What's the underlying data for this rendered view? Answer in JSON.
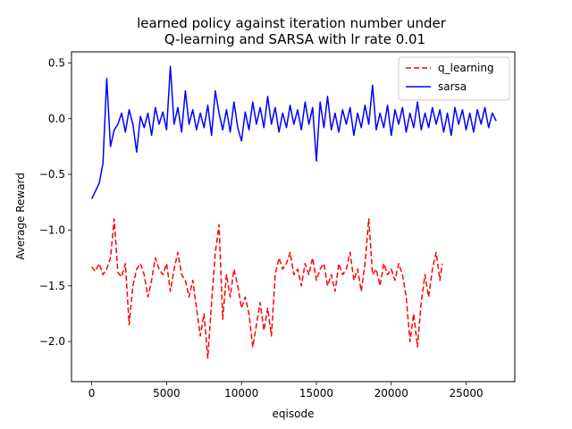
{
  "chart_data": {
    "type": "line",
    "title_line1": "learned policy against iteration number under",
    "title_line2": "Q-learning and SARSA with lr rate 0.01",
    "xlabel": "eqisode",
    "ylabel": "Average Reward",
    "xlim": [
      -1350,
      28250
    ],
    "ylim": [
      -2.36,
      0.6
    ],
    "xticks": [
      0,
      5000,
      10000,
      15000,
      20000,
      25000
    ],
    "xtick_labels": [
      "0",
      "5000",
      "10000",
      "15000",
      "20000",
      "25000"
    ],
    "yticks": [
      0.5,
      0.0,
      -0.5,
      -1.0,
      -1.5,
      -2.0
    ],
    "ytick_labels": [
      "0.5",
      "0.0",
      "−0.5",
      "−1.0",
      "−1.5",
      "−2.0"
    ],
    "grid": false,
    "legend_position": "upper right",
    "series": [
      {
        "name": "q_learning",
        "color": "#ff0000",
        "linestyle": "dashed",
        "x": [
          0,
          250,
          500,
          750,
          1000,
          1250,
          1500,
          1750,
          2000,
          2250,
          2500,
          2750,
          3000,
          3250,
          3500,
          3750,
          4000,
          4250,
          4500,
          4750,
          5000,
          5250,
          5500,
          5750,
          6000,
          6250,
          6500,
          6750,
          7000,
          7250,
          7500,
          7750,
          8000,
          8250,
          8500,
          8750,
          9000,
          9250,
          9500,
          9750,
          10000,
          10250,
          10500,
          10750,
          11000,
          11250,
          11500,
          11750,
          12000,
          12250,
          12500,
          12750,
          13000,
          13250,
          13500,
          13750,
          14000,
          14250,
          14500,
          14750,
          15000,
          15250,
          15500,
          15750,
          16000,
          16250,
          16500,
          16750,
          17000,
          17250,
          17500,
          17750,
          18000,
          18250,
          18500,
          18750,
          19000,
          19250,
          19500,
          19750,
          20000,
          20250,
          20500,
          20750,
          21000,
          21250,
          21500,
          21750,
          22000,
          22250,
          22500,
          22750,
          23000,
          23250,
          23400
        ],
        "y": [
          -1.33,
          -1.37,
          -1.3,
          -1.4,
          -1.35,
          -1.25,
          -0.9,
          -1.38,
          -1.42,
          -1.3,
          -1.85,
          -1.5,
          -1.35,
          -1.3,
          -1.4,
          -1.6,
          -1.45,
          -1.25,
          -1.35,
          -1.4,
          -1.3,
          -1.55,
          -1.35,
          -1.2,
          -1.4,
          -1.45,
          -1.6,
          -1.45,
          -1.7,
          -1.95,
          -1.75,
          -2.15,
          -1.65,
          -1.2,
          -0.95,
          -1.8,
          -1.4,
          -1.6,
          -1.35,
          -1.5,
          -1.7,
          -1.6,
          -1.75,
          -2.05,
          -1.85,
          -1.65,
          -1.9,
          -1.7,
          -1.95,
          -1.4,
          -1.25,
          -1.35,
          -1.3,
          -1.2,
          -1.4,
          -1.35,
          -1.5,
          -1.3,
          -1.4,
          -1.25,
          -1.45,
          -1.35,
          -1.3,
          -1.5,
          -1.4,
          -1.55,
          -1.3,
          -1.4,
          -1.35,
          -1.2,
          -1.45,
          -1.35,
          -1.55,
          -1.3,
          -0.9,
          -1.4,
          -1.35,
          -1.5,
          -1.3,
          -1.4,
          -1.35,
          -1.45,
          -1.3,
          -1.4,
          -1.6,
          -2.0,
          -1.75,
          -2.05,
          -1.65,
          -1.4,
          -1.6,
          -1.35,
          -1.2,
          -1.45,
          -1.3
        ]
      },
      {
        "name": "sarsa",
        "color": "#0000ff",
        "linestyle": "solid",
        "x": [
          0,
          250,
          500,
          750,
          1000,
          1250,
          1500,
          1750,
          2000,
          2250,
          2500,
          2750,
          3000,
          3250,
          3500,
          3750,
          4000,
          4250,
          4500,
          4750,
          5000,
          5250,
          5500,
          5750,
          6000,
          6250,
          6500,
          6750,
          7000,
          7250,
          7500,
          7750,
          8000,
          8250,
          8500,
          8750,
          9000,
          9250,
          9500,
          9750,
          10000,
          10250,
          10500,
          10750,
          11000,
          11250,
          11500,
          11750,
          12000,
          12250,
          12500,
          12750,
          13000,
          13250,
          13500,
          13750,
          14000,
          14250,
          14500,
          14750,
          15000,
          15250,
          15500,
          15750,
          16000,
          16250,
          16500,
          16750,
          17000,
          17250,
          17500,
          17750,
          18000,
          18250,
          18500,
          18750,
          19000,
          19250,
          19500,
          19750,
          20000,
          20250,
          20500,
          20750,
          21000,
          21250,
          21500,
          21750,
          22000,
          22250,
          22500,
          22750,
          23000,
          23250,
          23500,
          23750,
          24000,
          24250,
          24500,
          24750,
          25000,
          25250,
          25500,
          25750,
          26000,
          26250,
          26500,
          26750,
          27000
        ],
        "y": [
          -0.72,
          -0.65,
          -0.58,
          -0.4,
          0.36,
          -0.25,
          -0.1,
          -0.05,
          0.05,
          -0.12,
          0.08,
          -0.05,
          -0.3,
          0.02,
          -0.08,
          0.05,
          -0.15,
          0.1,
          -0.05,
          0.06,
          -0.1,
          0.47,
          -0.05,
          0.1,
          -0.12,
          0.25,
          -0.05,
          0.08,
          -0.1,
          0.05,
          -0.08,
          0.12,
          -0.15,
          0.25,
          0.05,
          -0.1,
          0.08,
          -0.12,
          0.15,
          -0.08,
          -0.2,
          0.06,
          -0.1,
          0.15,
          -0.05,
          0.1,
          -0.08,
          0.2,
          -0.05,
          0.1,
          -0.12,
          0.05,
          -0.08,
          0.12,
          -0.05,
          0.08,
          -0.1,
          0.15,
          -0.05,
          0.1,
          -0.38,
          0.15,
          -0.08,
          0.2,
          -0.1,
          0.05,
          -0.12,
          0.08,
          -0.05,
          0.1,
          -0.15,
          0.05,
          -0.08,
          0.12,
          -0.05,
          0.3,
          -0.1,
          0.05,
          -0.08,
          0.12,
          -0.15,
          0.08,
          -0.05,
          0.1,
          -0.12,
          0.05,
          -0.08,
          0.15,
          -0.1,
          0.05,
          -0.08,
          0.1,
          -0.05,
          0.08,
          -0.12,
          0.05,
          -0.15,
          0.1,
          -0.05,
          0.08,
          -0.1,
          0.05,
          -0.12,
          0.08,
          -0.05,
          0.1,
          -0.08,
          0.05,
          -0.02
        ]
      }
    ]
  }
}
